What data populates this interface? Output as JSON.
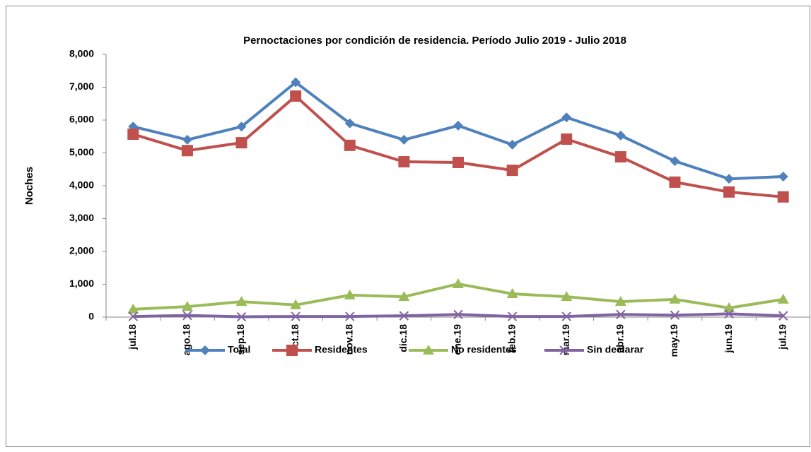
{
  "chart_data": {
    "type": "line",
    "title": "Pernoctaciones por condición de residencia. Período  Julio 2019 - Julio 2018",
    "y_label": "Noches",
    "categories": [
      "jul.18",
      "ago.18",
      "sep.18",
      "oct.18",
      "nov.18",
      "dic.18",
      "ene.19",
      "feb.19",
      "mar.19",
      "abr.19",
      "may.19",
      "jun.19",
      "jul.19"
    ],
    "series": [
      {
        "name": "Total",
        "color": "#4f81bd",
        "marker": "diamond",
        "values": [
          5800,
          5400,
          5800,
          7150,
          5900,
          5400,
          5830,
          5250,
          6080,
          5530,
          4750,
          4210,
          4280
        ]
      },
      {
        "name": "Residentes",
        "color": "#c0504d",
        "marker": "square",
        "values": [
          5570,
          5070,
          5310,
          6730,
          5230,
          4730,
          4710,
          4470,
          5420,
          4880,
          4110,
          3810,
          3660
        ]
      },
      {
        "name": "No residentes",
        "color": "#9bbb59",
        "marker": "triangle",
        "values": [
          240,
          320,
          470,
          370,
          670,
          620,
          1010,
          710,
          620,
          470,
          540,
          280,
          540
        ]
      },
      {
        "name": "Sin declarar",
        "color": "#8064a2",
        "marker": "x",
        "values": [
          20,
          50,
          10,
          20,
          20,
          40,
          80,
          20,
          20,
          80,
          60,
          100,
          40
        ]
      }
    ],
    "ylim": [
      0,
      8000
    ],
    "yticks": [
      0,
      {
        "value": 1000,
        "label": "1,000"
      },
      {
        "value": 2000,
        "label": "2,000"
      },
      {
        "value": 3000,
        "label": "3,000"
      },
      {
        "value": 4000,
        "label": "4,000"
      },
      {
        "value": 5000,
        "label": "5,000"
      },
      {
        "value": 6000,
        "label": "6,000"
      },
      {
        "value": 7000,
        "label": "7,000"
      },
      {
        "value": 8000,
        "label": "8,000"
      }
    ],
    "legend": "bottom"
  }
}
